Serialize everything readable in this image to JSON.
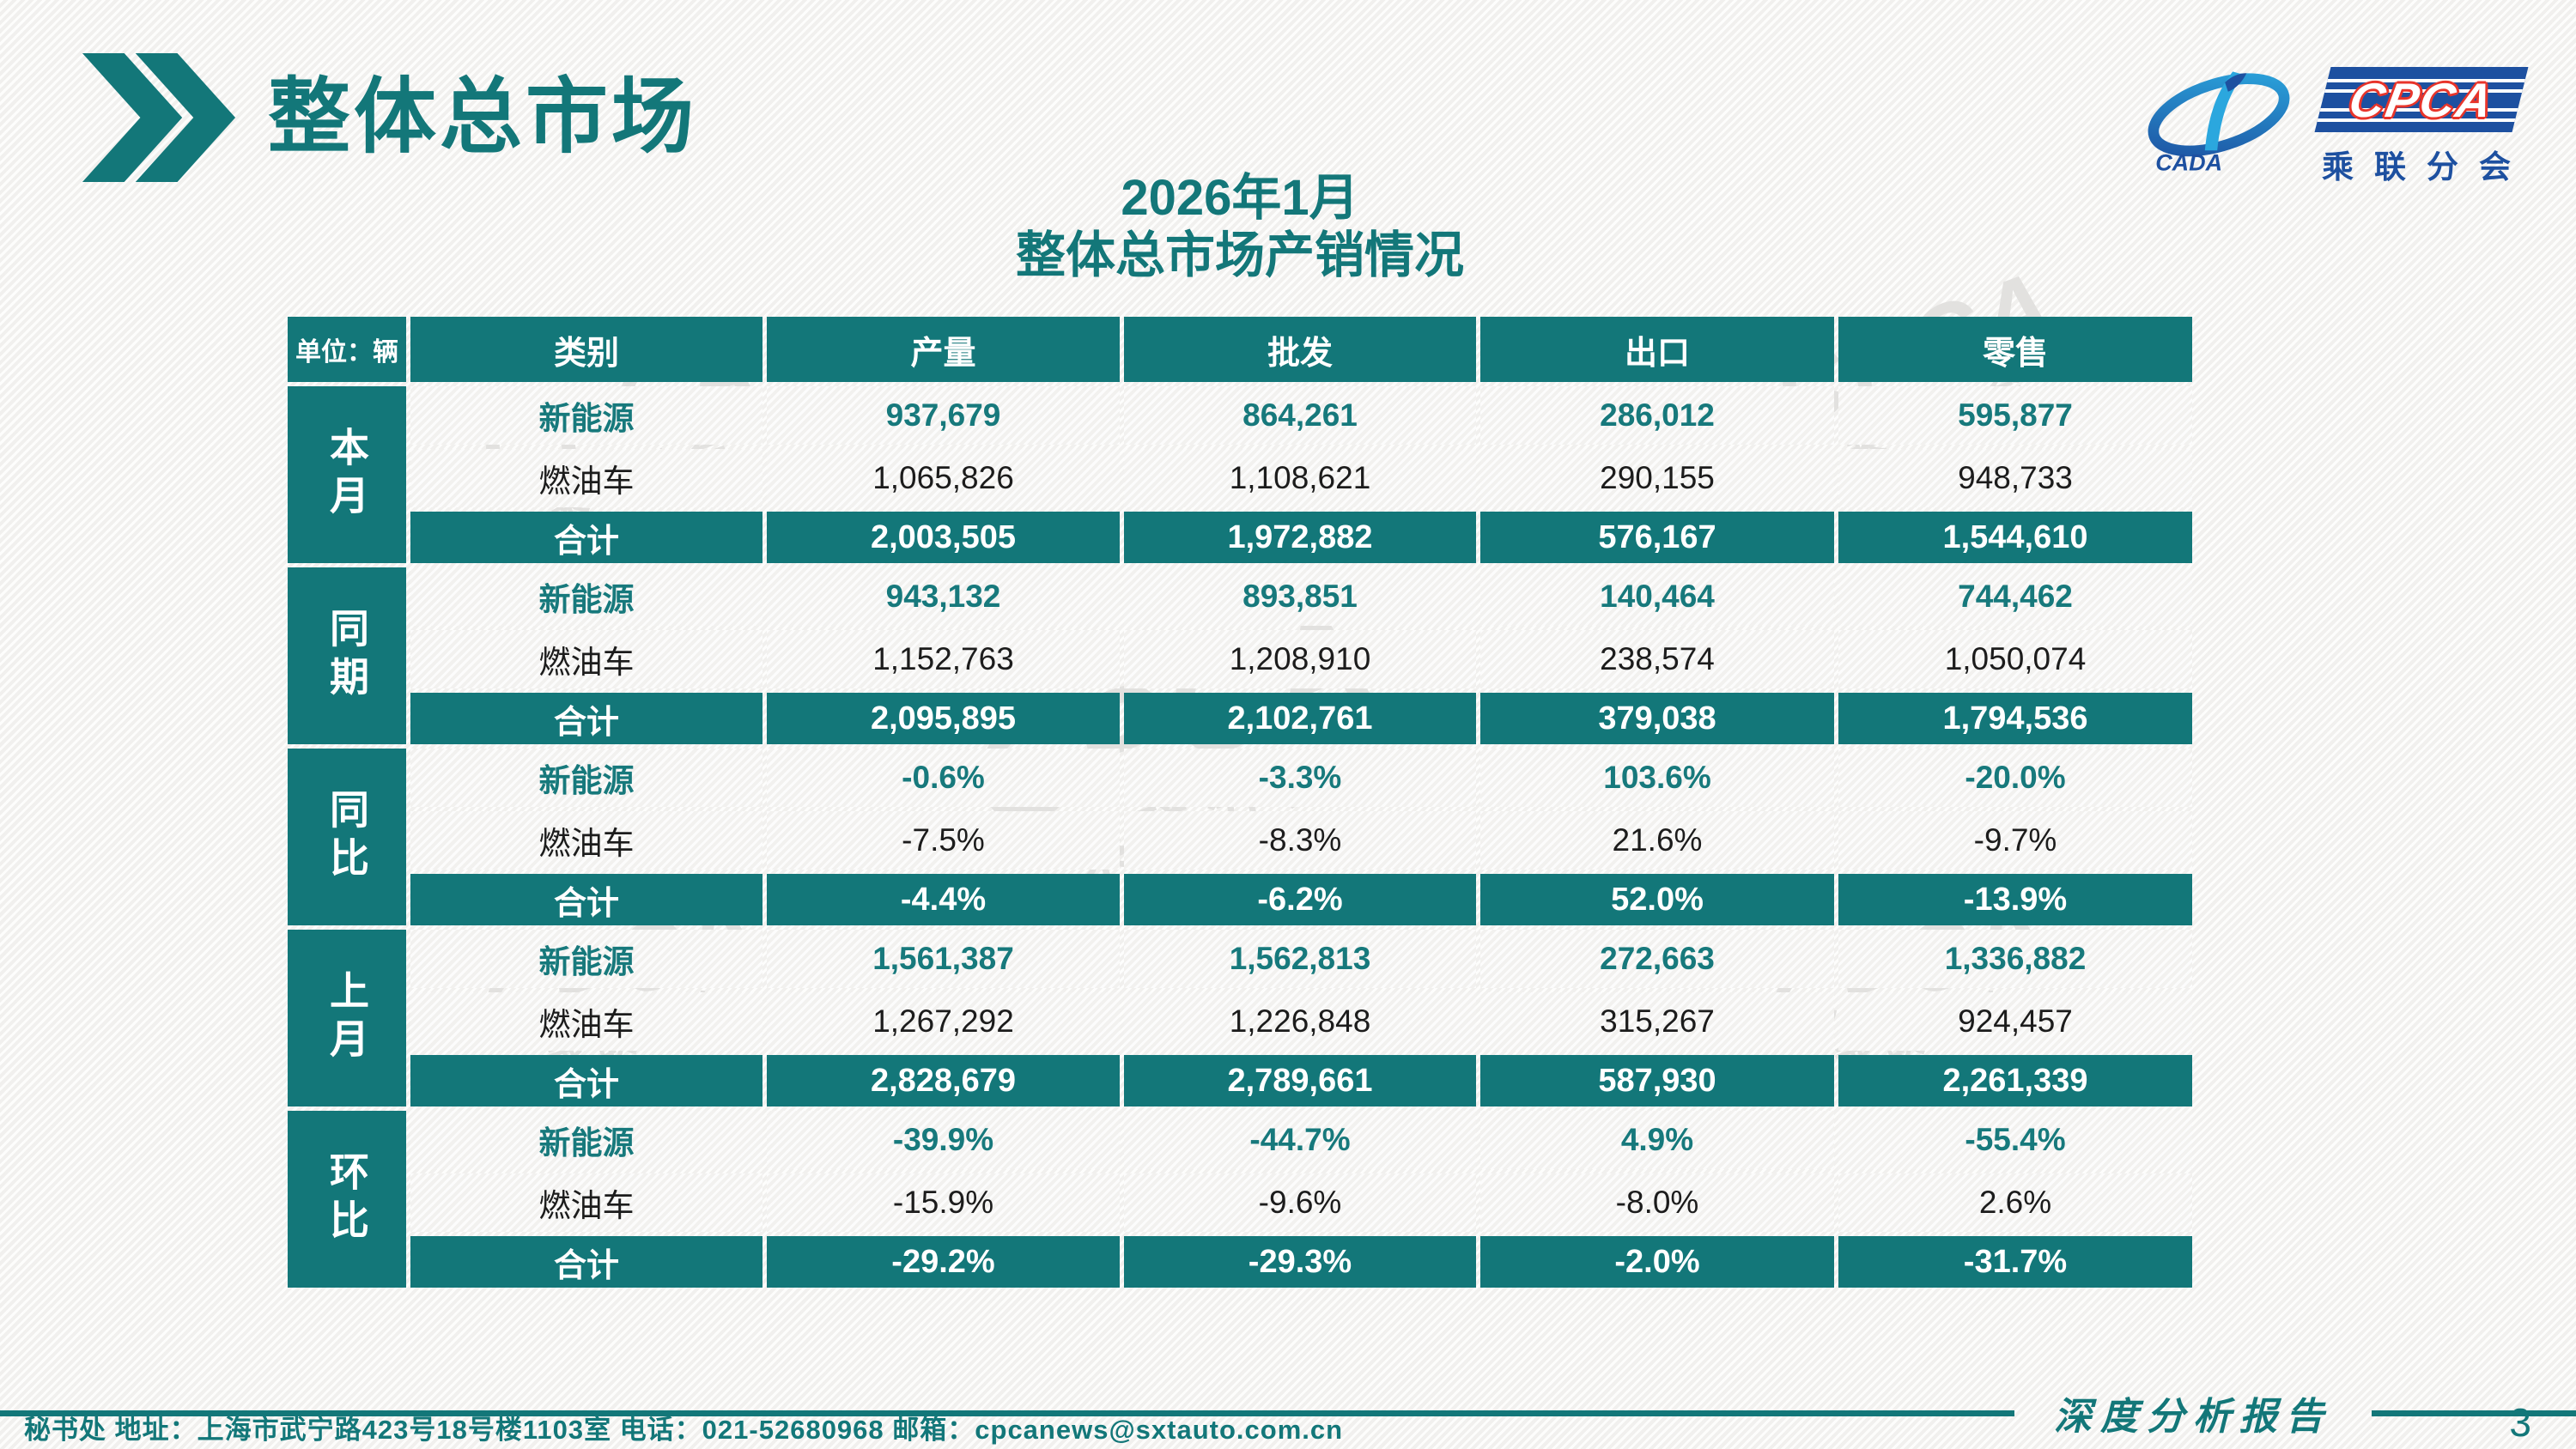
{
  "header": {
    "title": "整体总市场",
    "logo": {
      "acronym": "CPCA",
      "cada": "CADA",
      "subtitle": "乘联分会"
    }
  },
  "watermark": {
    "big": "CPCA",
    "small": "乘联分会"
  },
  "table": {
    "title_line1": "2026年1月",
    "title_line2": "整体总市场产销情况",
    "unit_label": "单位：辆",
    "columns": [
      "类别",
      "产量",
      "批发",
      "出口",
      "零售"
    ],
    "groups": [
      {
        "name": "本月",
        "rows": [
          {
            "label": "新能源",
            "style": "nev",
            "values": [
              "937,679",
              "864,261",
              "286,012",
              "595,877"
            ]
          },
          {
            "label": "燃油车",
            "style": "fuel",
            "values": [
              "1,065,826",
              "1,108,621",
              "290,155",
              "948,733"
            ]
          },
          {
            "label": "合计",
            "style": "total",
            "values": [
              "2,003,505",
              "1,972,882",
              "576,167",
              "1,544,610"
            ]
          }
        ]
      },
      {
        "name": "同期",
        "rows": [
          {
            "label": "新能源",
            "style": "nev",
            "values": [
              "943,132",
              "893,851",
              "140,464",
              "744,462"
            ]
          },
          {
            "label": "燃油车",
            "style": "fuel",
            "values": [
              "1,152,763",
              "1,208,910",
              "238,574",
              "1,050,074"
            ]
          },
          {
            "label": "合计",
            "style": "total",
            "values": [
              "2,095,895",
              "2,102,761",
              "379,038",
              "1,794,536"
            ]
          }
        ]
      },
      {
        "name": "同比",
        "rows": [
          {
            "label": "新能源",
            "style": "nev",
            "values": [
              "-0.6%",
              "-3.3%",
              "103.6%",
              "-20.0%"
            ]
          },
          {
            "label": "燃油车",
            "style": "fuel",
            "values": [
              "-7.5%",
              "-8.3%",
              "21.6%",
              "-9.7%"
            ]
          },
          {
            "label": "合计",
            "style": "total",
            "values": [
              "-4.4%",
              "-6.2%",
              "52.0%",
              "-13.9%"
            ]
          }
        ]
      },
      {
        "name": "上月",
        "rows": [
          {
            "label": "新能源",
            "style": "nev",
            "values": [
              "1,561,387",
              "1,562,813",
              "272,663",
              "1,336,882"
            ]
          },
          {
            "label": "燃油车",
            "style": "fuel",
            "values": [
              "1,267,292",
              "1,226,848",
              "315,267",
              "924,457"
            ]
          },
          {
            "label": "合计",
            "style": "total",
            "values": [
              "2,828,679",
              "2,789,661",
              "587,930",
              "2,261,339"
            ]
          }
        ]
      },
      {
        "name": "环比",
        "rows": [
          {
            "label": "新能源",
            "style": "nev",
            "values": [
              "-39.9%",
              "-44.7%",
              "4.9%",
              "-55.4%"
            ]
          },
          {
            "label": "燃油车",
            "style": "fuel",
            "values": [
              "-15.9%",
              "-9.6%",
              "-8.0%",
              "2.6%"
            ]
          },
          {
            "label": "合计",
            "style": "total",
            "values": [
              "-29.2%",
              "-29.3%",
              "-2.0%",
              "-31.7%"
            ]
          }
        ]
      }
    ]
  },
  "footer": {
    "contact": "秘书处   地址：上海市武宁路423号18号楼1103室  电话：021-52680968   邮箱：cpcanews@sxtauto.com.cn",
    "report_label": "深度分析报告",
    "page_number": "3"
  },
  "colors": {
    "teal": "#137779",
    "nev_text": "#17797c",
    "logo_blue": "#1d50a0",
    "logo_red": "#e8352b"
  }
}
